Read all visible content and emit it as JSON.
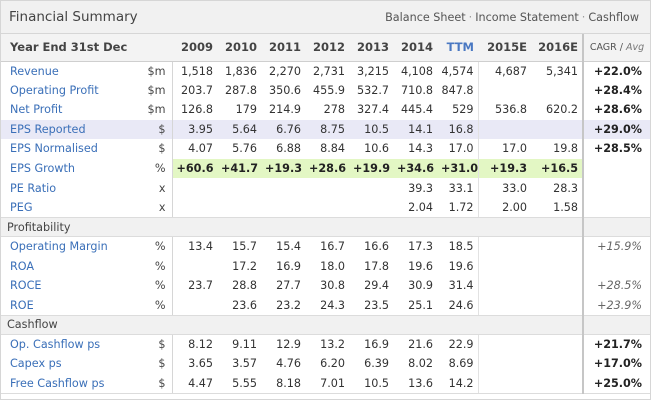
{
  "header": {
    "title": "Financial Summary",
    "links": [
      "Balance Sheet",
      "Income Statement",
      "Cashflow"
    ],
    "separator": "·"
  },
  "columns": {
    "label": "Year End 31st Dec",
    "years": [
      "2009",
      "2010",
      "2011",
      "2012",
      "2013",
      "2014",
      "TTM",
      "2015E",
      "2016E"
    ],
    "cagr_label": "CAGR /",
    "cagr_avg": "Avg"
  },
  "sections": [
    {
      "title": "",
      "rows": [
        {
          "label": "Revenue",
          "unit": "$m",
          "values": [
            "1,518",
            "1,836",
            "2,270",
            "2,731",
            "3,215",
            "4,108",
            "4,574",
            "4,687",
            "5,341"
          ],
          "cagr": "+22.0%"
        },
        {
          "label": "Operating Profit",
          "unit": "$m",
          "values": [
            "203.7",
            "287.8",
            "350.6",
            "455.9",
            "532.7",
            "710.8",
            "847.8",
            "",
            ""
          ],
          "cagr": "+28.4%"
        },
        {
          "label": "Net Profit",
          "unit": "$m",
          "values": [
            "126.8",
            "179",
            "214.9",
            "278",
            "327.4",
            "445.4",
            "529",
            "536.8",
            "620.2"
          ],
          "cagr": "+28.6%"
        },
        {
          "label": "EPS Reported",
          "unit": "$",
          "values": [
            "3.95",
            "5.64",
            "6.76",
            "8.75",
            "10.5",
            "14.1",
            "16.8",
            "",
            ""
          ],
          "cagr": "+29.0%"
        },
        {
          "label": "EPS Normalised",
          "unit": "$",
          "values": [
            "4.07",
            "5.76",
            "6.88",
            "8.84",
            "10.6",
            "14.3",
            "17.0",
            "17.0",
            "19.8"
          ],
          "cagr": "+28.5%"
        },
        {
          "label": "EPS Growth",
          "unit": "%",
          "values": [
            "+60.6",
            "+41.7",
            "+19.3",
            "+28.6",
            "+19.9",
            "+34.6",
            "+31.0",
            "+19.3",
            "+16.5"
          ],
          "cagr": ""
        },
        {
          "label": "PE Ratio",
          "unit": "x",
          "values": [
            "",
            "",
            "",
            "",
            "",
            "39.3",
            "33.1",
            "33.0",
            "28.3"
          ],
          "cagr": ""
        },
        {
          "label": "PEG",
          "unit": "x",
          "values": [
            "",
            "",
            "",
            "",
            "",
            "2.04",
            "1.72",
            "2.00",
            "1.58"
          ],
          "cagr": ""
        }
      ]
    },
    {
      "title": "Profitability",
      "rows": [
        {
          "label": "Operating Margin",
          "unit": "%",
          "values": [
            "13.4",
            "15.7",
            "15.4",
            "16.7",
            "16.6",
            "17.3",
            "18.5",
            "",
            ""
          ],
          "cagr": "+15.9%"
        },
        {
          "label": "ROA",
          "unit": "%",
          "values": [
            "",
            "17.2",
            "16.9",
            "18.0",
            "17.8",
            "19.6",
            "19.6",
            "",
            ""
          ],
          "cagr": ""
        },
        {
          "label": "ROCE",
          "unit": "%",
          "values": [
            "23.7",
            "28.8",
            "27.7",
            "30.8",
            "29.4",
            "30.9",
            "31.4",
            "",
            ""
          ],
          "cagr": "+28.5%"
        },
        {
          "label": "ROE",
          "unit": "%",
          "values": [
            "",
            "23.6",
            "23.2",
            "24.3",
            "23.5",
            "25.1",
            "24.6",
            "",
            ""
          ],
          "cagr": "+23.9%"
        }
      ]
    },
    {
      "title": "Cashflow",
      "rows": [
        {
          "label": "Op. Cashflow ps",
          "unit": "$",
          "values": [
            "8.12",
            "9.11",
            "12.9",
            "13.2",
            "16.9",
            "21.6",
            "22.9",
            "",
            ""
          ],
          "cagr": "+21.7%"
        },
        {
          "label": "Capex ps",
          "unit": "$",
          "values": [
            "3.65",
            "3.57",
            "4.76",
            "6.20",
            "6.39",
            "8.02",
            "8.69",
            "",
            ""
          ],
          "cagr": "+17.0%"
        },
        {
          "label": "Free Cashflow ps",
          "unit": "$",
          "values": [
            "4.47",
            "5.55",
            "8.18",
            "7.01",
            "10.5",
            "13.6",
            "14.2",
            "",
            ""
          ],
          "cagr": "+25.0%"
        }
      ]
    }
  ],
  "colors": {
    "link": "#3a6fb8",
    "ttm_header": "#4a78c2",
    "eps_reported_row": "#e9e9f6",
    "eps_growth_row": "#e3f7c4",
    "section_bg": "#f1f1f1"
  }
}
